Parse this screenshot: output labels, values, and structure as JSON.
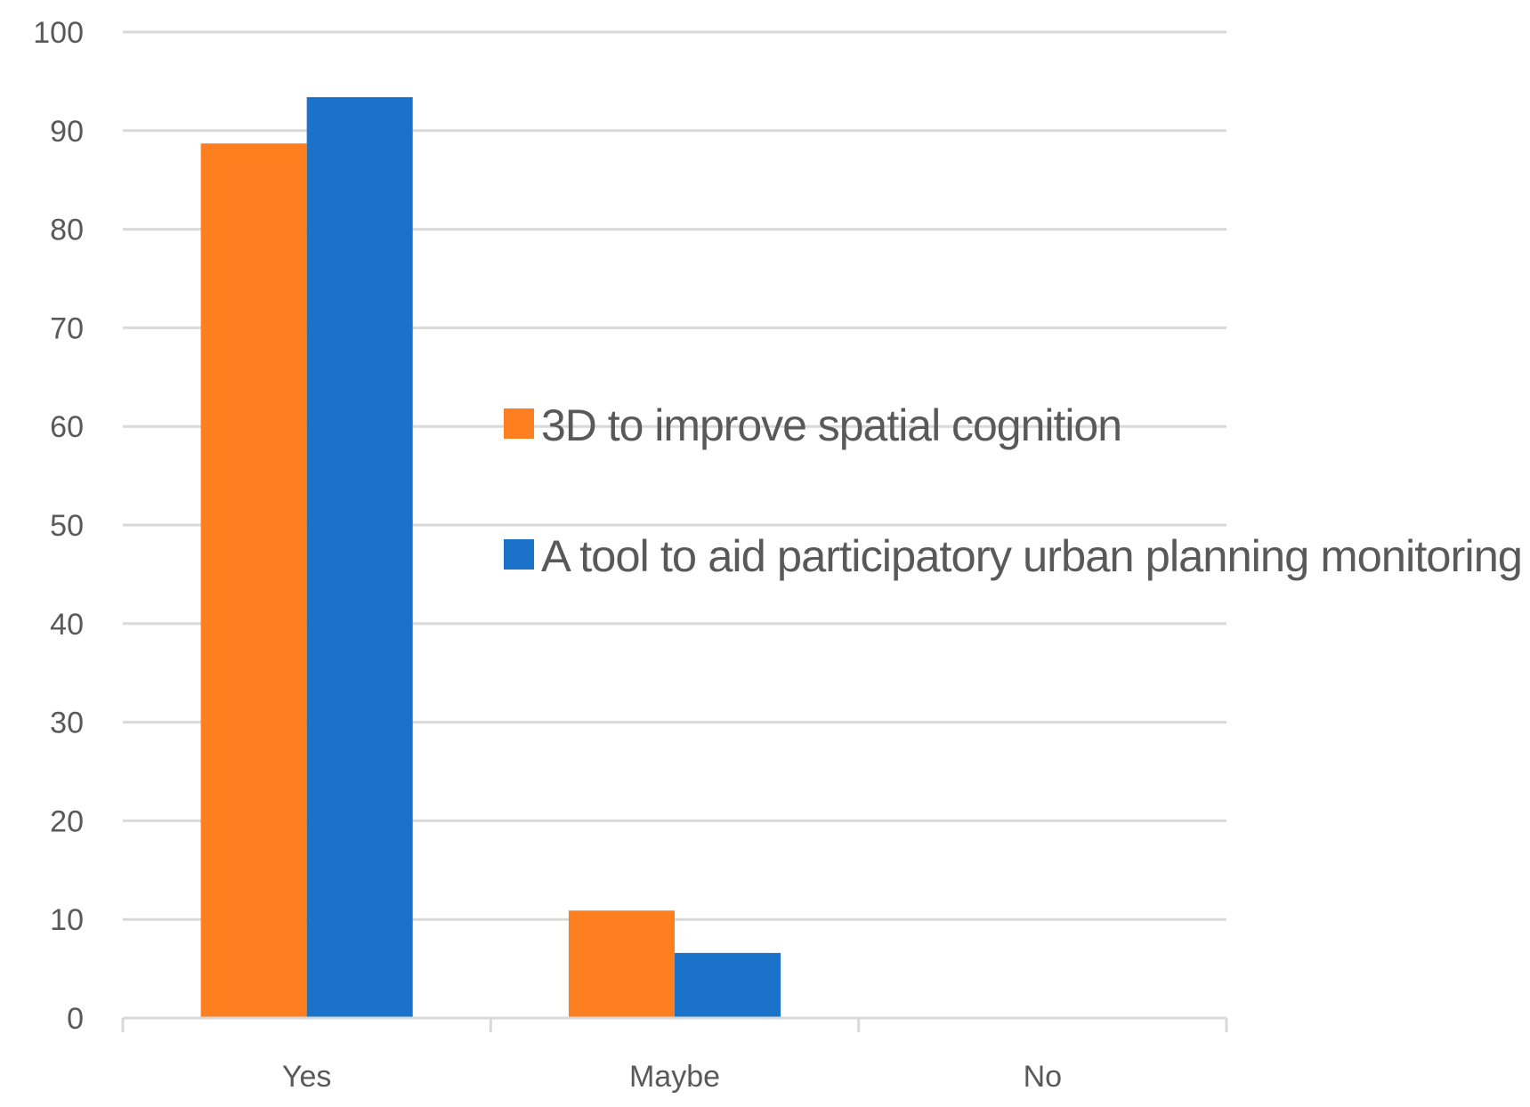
{
  "chart_data": {
    "type": "bar",
    "title": "",
    "xlabel": "",
    "ylabel": "",
    "categories": [
      "Yes",
      "Maybe",
      "No"
    ],
    "series": [
      {
        "name": "3D to improve spatial cognition",
        "values": [
          88.7,
          10.9,
          0
        ],
        "color": "#FD7F20"
      },
      {
        "name": "A tool to aid participatory urban planning monitoring",
        "values": [
          93.4,
          6.6,
          0
        ],
        "color": "#1A73C8"
      }
    ],
    "ylim": [
      0,
      100
    ],
    "yticks": [
      0,
      10,
      20,
      30,
      40,
      50,
      60,
      70,
      80,
      90,
      100
    ],
    "grid": true,
    "legend_position": "right"
  },
  "colors": {
    "gridline": "#D9D9D9",
    "axis": "#D9D9D9",
    "tick_text": "#595959"
  }
}
